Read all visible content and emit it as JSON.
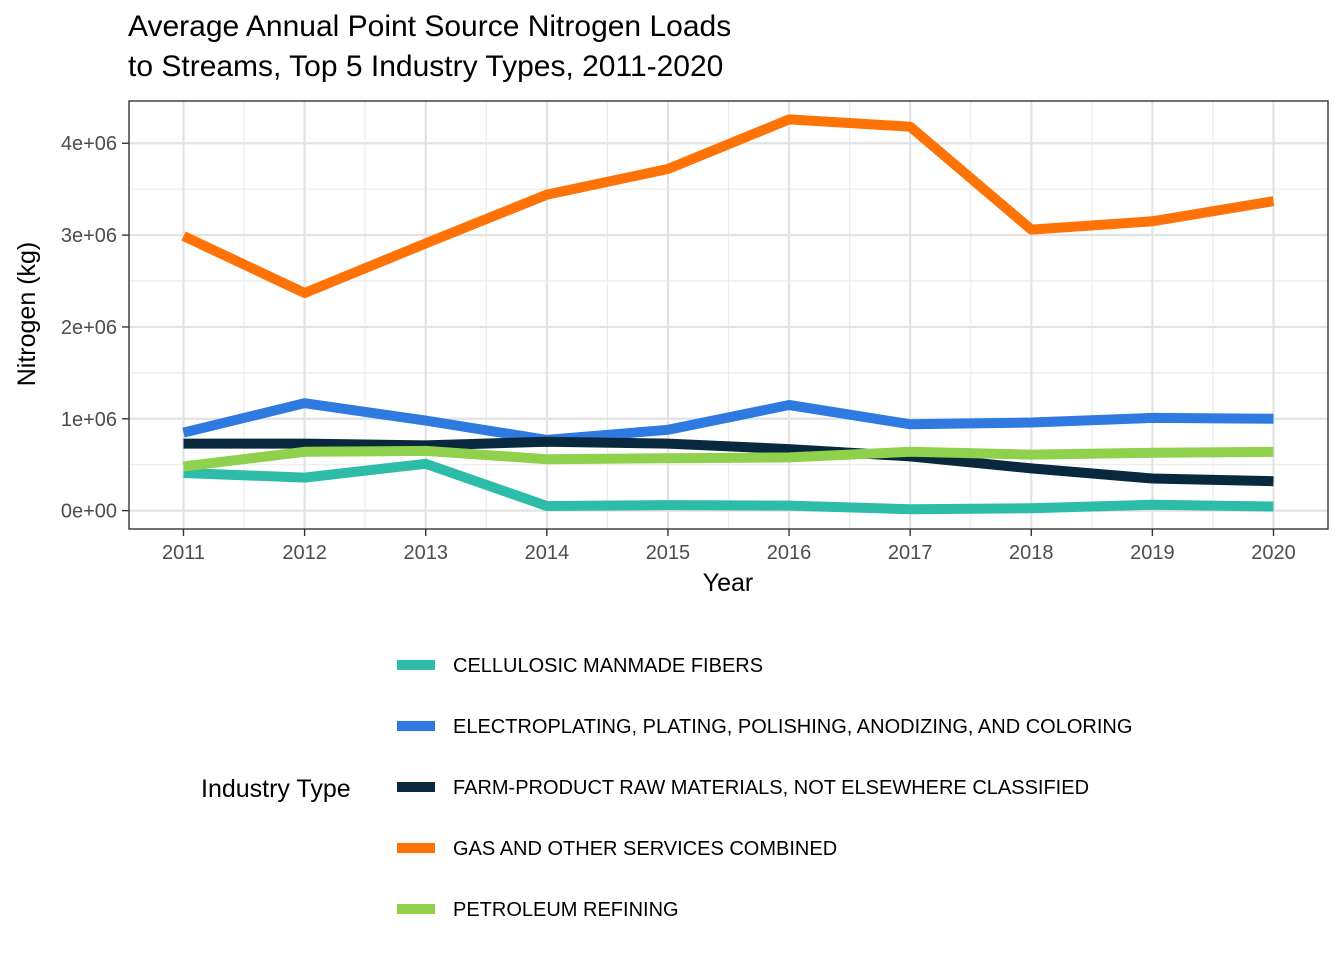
{
  "chart_data": {
    "type": "line",
    "title_lines": [
      "Average Annual Point Source Nitrogen Loads",
      "to Streams, Top 5 Industry Types, 2011-2020"
    ],
    "xlabel": "Year",
    "ylabel": "Nitrogen (kg)",
    "x": [
      2011,
      2012,
      2013,
      2014,
      2015,
      2016,
      2017,
      2018,
      2019,
      2020
    ],
    "x_tick_labels": [
      "2011",
      "2012",
      "2013",
      "2014",
      "2015",
      "2016",
      "2017",
      "2018",
      "2019",
      "2020"
    ],
    "ylim": [
      -200000,
      4460000
    ],
    "y_ticks": [
      0,
      1000000,
      2000000,
      3000000,
      4000000
    ],
    "y_tick_labels": [
      "0e+00",
      "1e+06",
      "2e+06",
      "3e+06",
      "4e+06"
    ],
    "grid": true,
    "legend_title": "Industry Type",
    "legend_position": "bottom",
    "series": [
      {
        "name": "CELLULOSIC MANMADE FIBERS",
        "color": "#2dbca8",
        "values": [
          410000,
          360000,
          510000,
          50000,
          60000,
          55000,
          15000,
          25000,
          65000,
          45000
        ]
      },
      {
        "name": "ELECTROPLATING, PLATING, POLISHING, ANODIZING, AND COLORING",
        "color": "#2e7ae0",
        "values": [
          850000,
          1170000,
          980000,
          770000,
          880000,
          1150000,
          940000,
          960000,
          1010000,
          1000000
        ]
      },
      {
        "name": "FARM-PRODUCT RAW MATERIALS, NOT ELSEWHERE CLASSIFIED",
        "color": "#08283e",
        "values": [
          730000,
          730000,
          710000,
          750000,
          730000,
          670000,
          590000,
          460000,
          350000,
          320000
        ]
      },
      {
        "name": "GAS AND OTHER SERVICES COMBINED",
        "color": "#ff7206",
        "values": [
          2990000,
          2370000,
          2910000,
          3440000,
          3720000,
          4260000,
          4180000,
          3060000,
          3150000,
          3370000
        ]
      },
      {
        "name": "PETROLEUM REFINING",
        "color": "#8fd04c",
        "values": [
          480000,
          640000,
          650000,
          560000,
          570000,
          580000,
          640000,
          610000,
          630000,
          640000
        ]
      }
    ]
  }
}
